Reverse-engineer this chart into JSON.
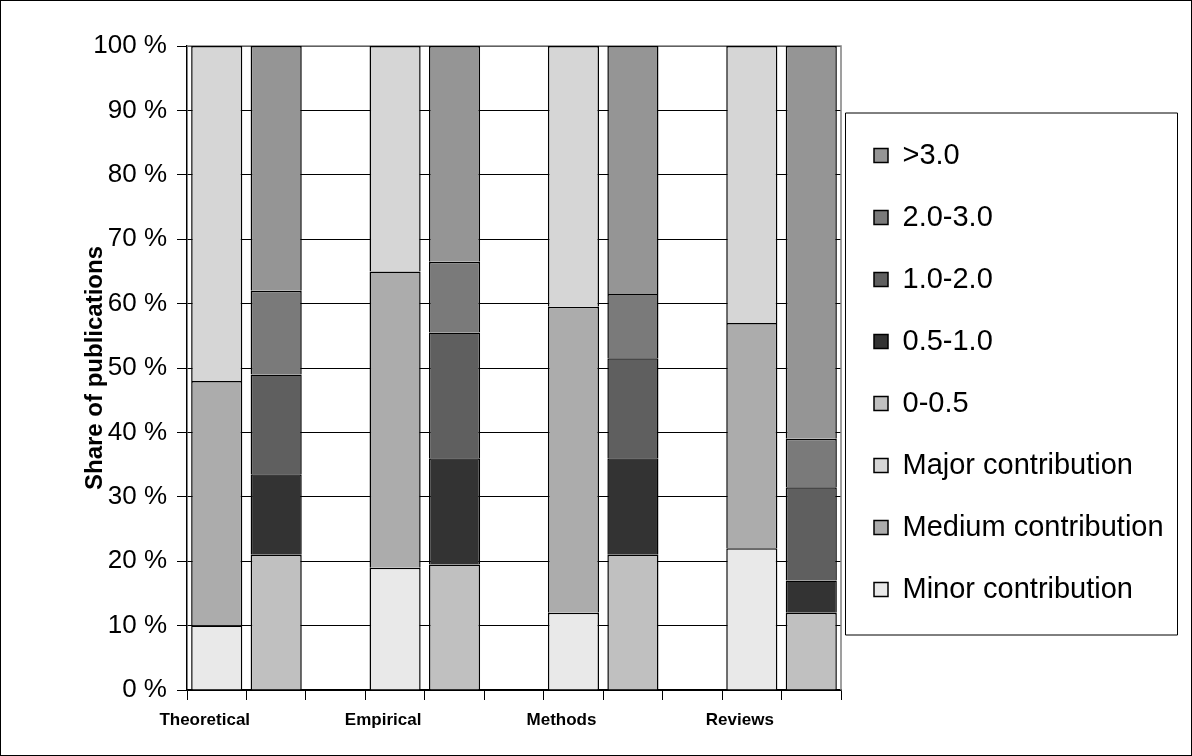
{
  "chart_data": {
    "type": "bar",
    "stacked": true,
    "ylabel": "Share of publications",
    "categories": [
      "Theoretical",
      null,
      null,
      "Empirical",
      null,
      null,
      "Methods",
      null,
      null,
      "Reviews",
      null
    ],
    "ylim": [
      0,
      100
    ],
    "yticks": [
      {
        "value": 0,
        "label": "0 %"
      },
      {
        "value": 10,
        "label": "10 %"
      },
      {
        "value": 20,
        "label": "20 %"
      },
      {
        "value": 30,
        "label": "30 %"
      },
      {
        "value": 40,
        "label": "40 %"
      },
      {
        "value": 50,
        "label": "50 %"
      },
      {
        "value": 60,
        "label": "60 %"
      },
      {
        "value": 70,
        "label": "70 %"
      },
      {
        "value": 80,
        "label": "80 %"
      },
      {
        "value": 90,
        "label": "90 %"
      },
      {
        "value": 100,
        "label": "100 %"
      }
    ],
    "grid": "y",
    "legend": "right",
    "series": [
      {
        "name": "Minor contribution",
        "color": "#e9e9e9",
        "values": [
          10,
          null,
          null,
          19,
          null,
          null,
          12,
          null,
          null,
          22,
          null
        ]
      },
      {
        "name": "Medium contribution",
        "color": "#acacac",
        "values": [
          38,
          null,
          null,
          46,
          null,
          null,
          47.5,
          null,
          null,
          35,
          null
        ]
      },
      {
        "name": "Major contribution",
        "color": "#d6d6d6",
        "values": [
          52,
          null,
          null,
          35,
          null,
          null,
          40.5,
          null,
          null,
          43,
          null
        ]
      },
      {
        "name": "0-0.5",
        "color": "#c0c0c0",
        "values": [
          null,
          21,
          null,
          null,
          19.5,
          null,
          null,
          21,
          null,
          null,
          12
        ]
      },
      {
        "name": "0.5-1.0",
        "color": "#333333",
        "values": [
          null,
          12.5,
          null,
          null,
          16.5,
          null,
          null,
          15,
          null,
          null,
          5
        ]
      },
      {
        "name": "1.0-2.0",
        "color": "#5f5f5f",
        "values": [
          null,
          15.5,
          null,
          null,
          19.5,
          null,
          null,
          15.5,
          null,
          null,
          14.5
        ]
      },
      {
        "name": "2.0-3.0",
        "color": "#7a7a7a",
        "values": [
          null,
          13,
          null,
          null,
          11,
          null,
          null,
          10,
          null,
          null,
          7.5
        ]
      },
      {
        "name": ">3.0",
        "color": "#959595",
        "values": [
          null,
          38,
          null,
          null,
          33.5,
          null,
          null,
          38.5,
          null,
          null,
          61
        ]
      }
    ]
  }
}
